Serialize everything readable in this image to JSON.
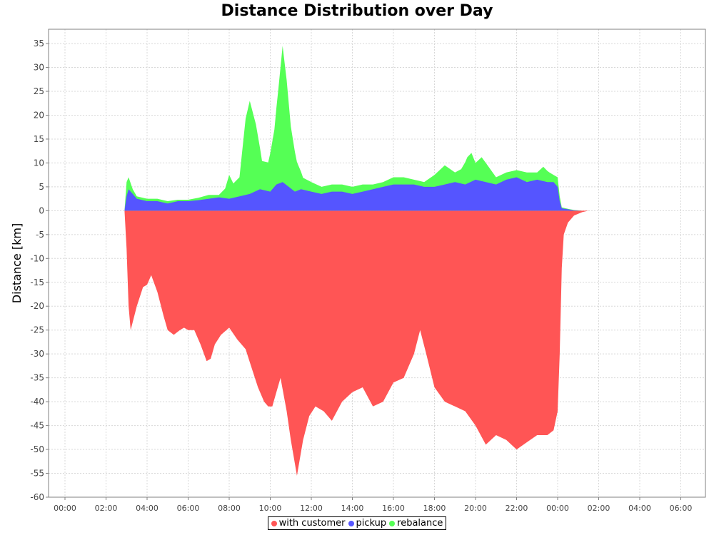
{
  "chart_data": {
    "type": "area",
    "title": "Distance Distribution over Day",
    "xlabel": "",
    "ylabel": "Distance [km]",
    "ylim": [
      -60,
      38
    ],
    "yticks": [
      35,
      30,
      25,
      20,
      15,
      10,
      5,
      0,
      -5,
      -10,
      -15,
      -20,
      -25,
      -30,
      -35,
      -40,
      -45,
      -50,
      -55,
      -60
    ],
    "xlim": [
      -0.8,
      31.2
    ],
    "xticks": [
      {
        "x": 0,
        "label": "00:00"
      },
      {
        "x": 2,
        "label": "02:00"
      },
      {
        "x": 4,
        "label": "04:00"
      },
      {
        "x": 6,
        "label": "06:00"
      },
      {
        "x": 8,
        "label": "08:00"
      },
      {
        "x": 10,
        "label": "10:00"
      },
      {
        "x": 12,
        "label": "12:00"
      },
      {
        "x": 14,
        "label": "14:00"
      },
      {
        "x": 16,
        "label": "16:00"
      },
      {
        "x": 18,
        "label": "18:00"
      },
      {
        "x": 20,
        "label": "20:00"
      },
      {
        "x": 22,
        "label": "22:00"
      },
      {
        "x": 24,
        "label": "00:00"
      },
      {
        "x": 26,
        "label": "02:00"
      },
      {
        "x": 28,
        "label": "04:00"
      },
      {
        "x": 30,
        "label": "06:00"
      }
    ],
    "grid": true,
    "legend_position": "bottom-center",
    "series": [
      {
        "name": "with customer",
        "color": "#ff5555",
        "x": [
          2.9,
          3.0,
          3.1,
          3.2,
          3.5,
          3.8,
          4.0,
          4.2,
          4.5,
          4.8,
          5.0,
          5.3,
          5.6,
          5.8,
          6.0,
          6.3,
          6.6,
          6.9,
          7.1,
          7.3,
          7.6,
          8.0,
          8.4,
          8.8,
          9.1,
          9.4,
          9.7,
          9.9,
          10.1,
          10.3,
          10.5,
          10.8,
          11.0,
          11.3,
          11.6,
          11.9,
          12.2,
          12.6,
          13.0,
          13.5,
          14.0,
          14.5,
          15.0,
          15.5,
          16.0,
          16.5,
          17.0,
          17.3,
          17.6,
          18.0,
          18.5,
          19.0,
          19.5,
          20.0,
          20.5,
          21.0,
          21.5,
          22.0,
          22.5,
          23.0,
          23.5,
          23.8,
          24.0,
          24.1,
          24.2,
          24.3,
          24.5,
          24.8,
          25.2,
          25.5,
          25.8
        ],
        "values": [
          0,
          -8,
          -20,
          -25,
          -20,
          -16,
          -15.5,
          -13.5,
          -17,
          -22,
          -25,
          -26,
          -25,
          -24.5,
          -25,
          -25,
          -28,
          -31.5,
          -31,
          -28,
          -26,
          -24.5,
          -27,
          -29,
          -33,
          -37,
          -40,
          -41,
          -41,
          -38,
          -35,
          -42,
          -48,
          -55.5,
          -48,
          -43,
          -41,
          -42,
          -44,
          -40,
          -38,
          -37,
          -41,
          -40,
          -36,
          -35,
          -30,
          -25,
          -30,
          -37,
          -40,
          -41,
          -42,
          -45,
          -49,
          -47,
          -48,
          -50,
          -48.5,
          -47,
          -47,
          -46,
          -42,
          -30,
          -12,
          -5,
          -2.5,
          -1,
          -0.3,
          0,
          0
        ]
      },
      {
        "name": "pickup",
        "color": "#5555ff",
        "x": [
          2.9,
          3.0,
          3.1,
          3.3,
          3.5,
          4.0,
          4.5,
          5.0,
          5.5,
          6.0,
          6.5,
          7.0,
          7.5,
          8.0,
          8.5,
          9.0,
          9.5,
          10.0,
          10.3,
          10.6,
          10.9,
          11.2,
          11.5,
          12.0,
          12.5,
          13.0,
          13.5,
          14.0,
          14.5,
          15.0,
          15.5,
          16.0,
          16.5,
          17.0,
          17.5,
          18.0,
          18.5,
          19.0,
          19.5,
          20.0,
          20.5,
          21.0,
          21.5,
          22.0,
          22.5,
          23.0,
          23.5,
          23.8,
          24.0,
          24.1,
          24.2,
          24.5,
          24.8,
          25.2,
          25.5
        ],
        "values": [
          0,
          3,
          4.5,
          3.5,
          2.5,
          2,
          2,
          1.5,
          2,
          2,
          2.2,
          2.5,
          2.8,
          2.5,
          3,
          3.5,
          4.5,
          4,
          5.5,
          6,
          5,
          4,
          4.5,
          4,
          3.5,
          4,
          4,
          3.5,
          4,
          4.5,
          5,
          5.5,
          5.5,
          5.5,
          5,
          5,
          5.5,
          6,
          5.5,
          6.5,
          6,
          5.5,
          6.5,
          7,
          6,
          6.5,
          6,
          6,
          5,
          2,
          0.5,
          0.3,
          0.1,
          0,
          0
        ]
      },
      {
        "name": "rebalance",
        "color": "#55ff55",
        "x": [
          2.9,
          3.0,
          3.1,
          3.3,
          3.5,
          4.0,
          4.5,
          5.0,
          5.5,
          6.0,
          6.5,
          7.0,
          7.5,
          7.8,
          8.0,
          8.2,
          8.5,
          8.8,
          9.0,
          9.3,
          9.6,
          9.9,
          10.2,
          10.4,
          10.6,
          10.8,
          11.0,
          11.3,
          11.6,
          12.0,
          12.5,
          13.0,
          13.5,
          14.0,
          14.5,
          15.0,
          15.5,
          16.0,
          16.5,
          17.0,
          17.5,
          18.0,
          18.5,
          19.0,
          19.3,
          19.6,
          19.8,
          20.0,
          20.3,
          20.6,
          21.0,
          21.5,
          22.0,
          22.5,
          23.0,
          23.3,
          23.6,
          23.8,
          24.0,
          24.1,
          24.2,
          24.5,
          24.8,
          25.2,
          25.5
        ],
        "values": [
          0,
          3,
          2.5,
          1,
          0.5,
          0.5,
          0.5,
          0.5,
          0.3,
          0.3,
          0.5,
          0.8,
          0.5,
          2,
          5,
          3,
          4,
          16,
          19.5,
          14,
          6,
          6,
          12,
          20,
          28.5,
          22,
          13,
          6,
          2.5,
          2,
          1.5,
          1.5,
          1.5,
          1.5,
          1.5,
          1,
          1,
          1.5,
          1.5,
          1,
          1,
          2.5,
          4,
          2,
          3,
          5.5,
          6,
          3.5,
          5,
          3.5,
          1.5,
          1.5,
          1.5,
          2,
          1.5,
          3,
          2,
          1.5,
          2,
          1,
          0.2,
          0.1,
          0.05,
          0,
          0
        ]
      }
    ]
  }
}
